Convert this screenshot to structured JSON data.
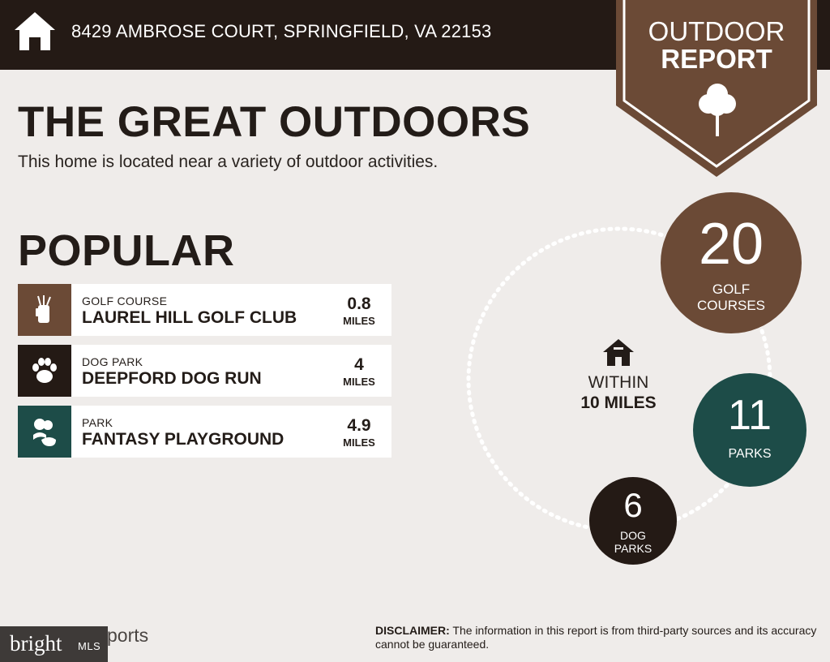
{
  "header": {
    "home_icon": "house-icon",
    "address": "8429 AMBROSE COURT, SPRINGFIELD, VA 22153"
  },
  "badge": {
    "line1": "OUTDOOR",
    "line2": "REPORT",
    "icon": "tree-icon",
    "color": "#6b4a36"
  },
  "title": "THE GREAT OUTDOORS",
  "subtitle": "This home is located near a variety of outdoor activities.",
  "popular": {
    "heading": "POPULAR",
    "items": [
      {
        "category": "GOLF COURSE",
        "name": "LAUREL HILL GOLF CLUB",
        "distance": "0.8",
        "unit": "MILES",
        "icon": "golf-bag-icon",
        "color": "#6b4a36"
      },
      {
        "category": "DOG PARK",
        "name": "DEEPFORD DOG RUN",
        "distance": "4",
        "unit": "MILES",
        "icon": "paw-icon",
        "color": "#241a15"
      },
      {
        "category": "PARK",
        "name": "FANTASY PLAYGROUND",
        "distance": "4.9",
        "unit": "MILES",
        "icon": "park-icon",
        "color": "#1d4c48"
      }
    ]
  },
  "summary": {
    "within_line1": "WITHIN",
    "within_line2": "10 MILES",
    "golf": {
      "count": "20",
      "label1": "GOLF",
      "label2": "COURSES"
    },
    "parks": {
      "count": "11",
      "label": "PARKS"
    },
    "dog_parks": {
      "count": "6",
      "label1": "DOG",
      "label2": "PARKS"
    }
  },
  "watermark": {
    "brand": "bright",
    "mls": "MLS",
    "reports": "ports"
  },
  "disclaimer": {
    "label": "DISCLAIMER:",
    "text": " The information in this report is from third-party sources and its accuracy cannot be guaranteed."
  }
}
